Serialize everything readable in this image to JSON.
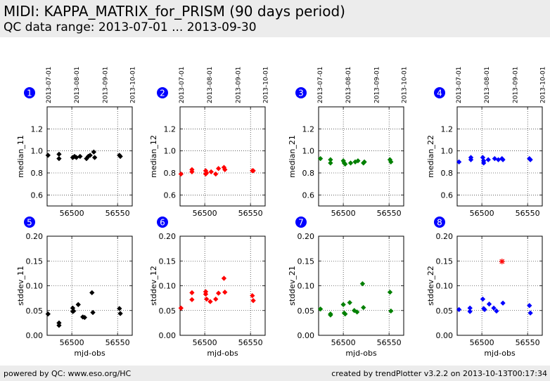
{
  "header": {
    "title": "MIDI: KAPPA_MATRIX_for_PRISM (90 days period)",
    "subtitle": "QC data range: 2013-07-01 ... 2013-09-30"
  },
  "footer": {
    "left": "powered by QC: www.eso.org/HC",
    "right": "created by trendPlotter v3.2.2 on 2013-10-13T00:17:34"
  },
  "chart_data": [
    {
      "type": "scatter",
      "panel_number": "1",
      "ylabel": "median_11",
      "xlabel": "",
      "color": "#000000",
      "xlim": [
        56473,
        56566
      ],
      "ylim": [
        0.5,
        1.4
      ],
      "xticks": [
        56500,
        56550
      ],
      "yticks": [
        0.6,
        0.8,
        1.0,
        1.2
      ],
      "yticklabels": [
        "0.6",
        "0.8",
        "1.0",
        "1.2"
      ],
      "date_ticks": [
        "2013-07-01",
        "2013-08-01",
        "2013-09-01",
        "2013-10-01"
      ],
      "x": [
        56474,
        56486,
        56486,
        56501,
        56503,
        56505,
        56509,
        56516,
        56518,
        56520,
        56524,
        56525,
        56552,
        56553
      ],
      "y": [
        0.96,
        0.97,
        0.93,
        0.94,
        0.95,
        0.94,
        0.95,
        0.93,
        0.95,
        0.96,
        0.99,
        0.94,
        0.96,
        0.95
      ]
    },
    {
      "type": "scatter",
      "panel_number": "2",
      "ylabel": "median_12",
      "xlabel": "",
      "color": "#ff0000",
      "xlim": [
        56473,
        56566
      ],
      "ylim": [
        0.5,
        1.4
      ],
      "xticks": [
        56500,
        56550
      ],
      "yticks": [
        0.6,
        0.8,
        1.0,
        1.2
      ],
      "yticklabels": [
        "0.6",
        "0.8",
        "1.0",
        "1.2"
      ],
      "date_ticks": [
        "2013-07-01",
        "2013-08-01",
        "2013-09-01",
        "2013-10-01"
      ],
      "x": [
        56474,
        56486,
        56486,
        56501,
        56501,
        56502,
        56507,
        56512,
        56515,
        56521,
        56522,
        56552,
        56553
      ],
      "y": [
        0.79,
        0.83,
        0.81,
        0.82,
        0.79,
        0.8,
        0.81,
        0.79,
        0.84,
        0.85,
        0.83,
        0.82,
        0.82
      ]
    },
    {
      "type": "scatter",
      "panel_number": "3",
      "ylabel": "median_21",
      "xlabel": "",
      "color": "#008000",
      "xlim": [
        56473,
        56566
      ],
      "ylim": [
        0.5,
        1.4
      ],
      "xticks": [
        56500,
        56550
      ],
      "yticks": [
        0.6,
        0.8,
        1.0,
        1.2
      ],
      "yticklabels": [
        "0.6",
        "0.8",
        "1.0",
        "1.2"
      ],
      "date_ticks": [
        "2013-07-01",
        "2013-08-01",
        "2013-09-01",
        "2013-10-01"
      ],
      "x": [
        56475,
        56486,
        56486,
        56500,
        56501,
        56502,
        56508,
        56513,
        56516,
        56522,
        56523,
        56551,
        56552
      ],
      "y": [
        0.93,
        0.92,
        0.89,
        0.91,
        0.89,
        0.88,
        0.89,
        0.9,
        0.91,
        0.89,
        0.9,
        0.92,
        0.9
      ]
    },
    {
      "type": "scatter",
      "panel_number": "4",
      "ylabel": "median_22",
      "xlabel": "",
      "color": "#0000ff",
      "xlim": [
        56473,
        56566
      ],
      "ylim": [
        0.5,
        1.4
      ],
      "xticks": [
        56500,
        56550
      ],
      "yticks": [
        0.6,
        0.8,
        1.0,
        1.2
      ],
      "yticklabels": [
        "0.6",
        "0.8",
        "1.0",
        "1.2"
      ],
      "date_ticks": [
        "2013-07-01",
        "2013-08-01",
        "2013-09-01",
        "2013-10-01"
      ],
      "x": [
        56475,
        56488,
        56488,
        56501,
        56502,
        56502,
        56507,
        56514,
        56518,
        56522,
        56523,
        56552,
        56553
      ],
      "y": [
        0.9,
        0.94,
        0.92,
        0.94,
        0.91,
        0.89,
        0.92,
        0.93,
        0.92,
        0.93,
        0.92,
        0.93,
        0.92
      ]
    },
    {
      "type": "scatter",
      "panel_number": "5",
      "ylabel": "stddev_11",
      "xlabel": "mjd-obs",
      "color": "#000000",
      "xlim": [
        56473,
        56566
      ],
      "ylim": [
        0.0,
        0.2
      ],
      "xticks": [
        56500,
        56550
      ],
      "yticks": [
        0.0,
        0.05,
        0.1,
        0.15,
        0.2
      ],
      "yticklabels": [
        "0.00",
        "0.05",
        "0.10",
        "0.15",
        "0.20"
      ],
      "x": [
        56474,
        56486,
        56486,
        56501,
        56501,
        56502,
        56507,
        56512,
        56514,
        56522,
        56523,
        56552,
        56553
      ],
      "y": [
        0.043,
        0.025,
        0.02,
        0.055,
        0.048,
        0.049,
        0.062,
        0.037,
        0.036,
        0.086,
        0.046,
        0.054,
        0.044
      ]
    },
    {
      "type": "scatter",
      "panel_number": "6",
      "ylabel": "stddev_12",
      "xlabel": "mjd-obs",
      "color": "#ff0000",
      "xlim": [
        56473,
        56566
      ],
      "ylim": [
        0.0,
        0.2
      ],
      "xticks": [
        56500,
        56550
      ],
      "yticks": [
        0.0,
        0.05,
        0.1,
        0.15,
        0.2
      ],
      "yticklabels": [
        "0.00",
        "0.05",
        "0.10",
        "0.15",
        "0.20"
      ],
      "x": [
        56474,
        56486,
        56486,
        56501,
        56501,
        56502,
        56506,
        56512,
        56515,
        56521,
        56522,
        56552,
        56553
      ],
      "y": [
        0.055,
        0.086,
        0.072,
        0.088,
        0.083,
        0.073,
        0.068,
        0.073,
        0.085,
        0.115,
        0.087,
        0.08,
        0.07
      ]
    },
    {
      "type": "scatter",
      "panel_number": "7",
      "ylabel": "stddev_21",
      "xlabel": "mjd-obs",
      "color": "#008000",
      "xlim": [
        56473,
        56566
      ],
      "ylim": [
        0.0,
        0.2
      ],
      "xticks": [
        56500,
        56550
      ],
      "yticks": [
        0.0,
        0.05,
        0.1,
        0.15,
        0.2
      ],
      "yticklabels": [
        "0.00",
        "0.05",
        "0.10",
        "0.15",
        "0.20"
      ],
      "x": [
        56475,
        56486,
        56486,
        56500,
        56501,
        56502,
        56507,
        56512,
        56515,
        56521,
        56522,
        56551,
        56552
      ],
      "y": [
        0.053,
        0.043,
        0.041,
        0.062,
        0.045,
        0.043,
        0.066,
        0.05,
        0.047,
        0.104,
        0.056,
        0.087,
        0.049
      ]
    },
    {
      "type": "scatter",
      "panel_number": "8",
      "ylabel": "stddev_22",
      "xlabel": "mjd-obs",
      "color": "#0000ff",
      "xlim": [
        56473,
        56566
      ],
      "ylim": [
        0.0,
        0.2
      ],
      "xticks": [
        56500,
        56550
      ],
      "yticks": [
        0.0,
        0.05,
        0.1,
        0.15,
        0.2
      ],
      "yticklabels": [
        "0.00",
        "0.05",
        "0.10",
        "0.15",
        "0.20"
      ],
      "x": [
        56475,
        56487,
        56487,
        56501,
        56502,
        56503,
        56508,
        56513,
        56516,
        56523,
        56552,
        56553
      ],
      "y": [
        0.052,
        0.055,
        0.048,
        0.073,
        0.054,
        0.052,
        0.063,
        0.055,
        0.049,
        0.065,
        0.06,
        0.045
      ],
      "outliers": {
        "color": "#ff0000",
        "x": [
          56522
        ],
        "y": [
          0.149
        ]
      }
    }
  ]
}
